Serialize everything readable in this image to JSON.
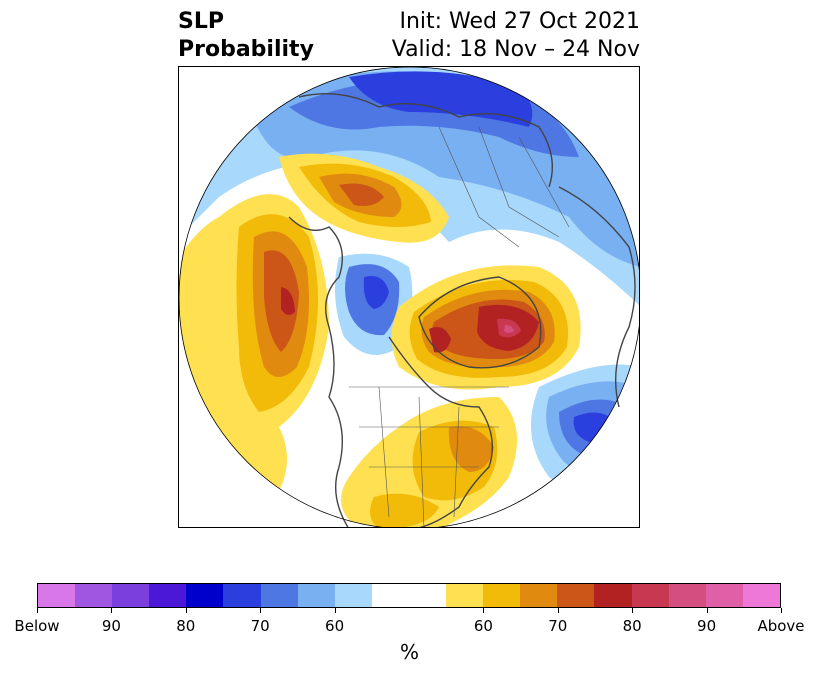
{
  "title": {
    "line1_left": "SLP",
    "line2_left": "Probability",
    "line1_right": "Init: Wed 27 Oct 2021",
    "line2_right": "Valid: 18 Nov – 24 Nov"
  },
  "colorbar": {
    "colors": [
      "#d877e8",
      "#a056e0",
      "#7a3fdd",
      "#4a18d6",
      "#0000cc",
      "#2a3fdd",
      "#4f77e4",
      "#79b0f2",
      "#a8d8fb",
      "#ffffff",
      "#ffffff",
      "#ffe050",
      "#f2bb0a",
      "#e08b10",
      "#cc5518",
      "#b32222",
      "#c83850",
      "#d44e80",
      "#e060a8",
      "#ee78d8"
    ],
    "tick_labels": [
      "Below",
      "90",
      "80",
      "70",
      "60",
      "60",
      "70",
      "80",
      "90",
      "Above"
    ],
    "unit_label": "%"
  },
  "map": {
    "projection": "north-polar-stereographic",
    "regions": [
      {
        "name": "north-pacific-gulf-of-alaska",
        "category": "Above",
        "level": "70-75"
      },
      {
        "name": "alaska-bering",
        "category": "Above",
        "level": "70-75"
      },
      {
        "name": "canadian-arctic-archipelago",
        "category": "Below",
        "level": "70-80"
      },
      {
        "name": "greenland-baffin",
        "category": "Above",
        "level": "80-85"
      },
      {
        "name": "eastern-north-america",
        "category": "Above",
        "level": "60-70"
      },
      {
        "name": "north-atlantic",
        "category": "Below",
        "level": "75-80"
      },
      {
        "name": "northern-eurasia",
        "category": "Below",
        "level": "70-80"
      }
    ]
  }
}
